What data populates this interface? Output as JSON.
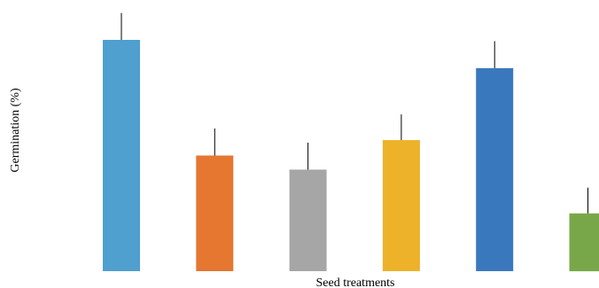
{
  "chart_data": {
    "type": "bar",
    "title": "",
    "xlabel": "Seed treatments",
    "ylabel": "Germination (%)",
    "ylim": [
      0,
      100
    ],
    "grid": false,
    "axis_ticks_shown": false,
    "legend": "none",
    "categories": [
      "",
      "",
      "",
      "",
      "",
      ""
    ],
    "values": [
      90,
      45,
      39.5,
      51,
      79,
      22.5
    ],
    "error_upper": [
      10.5,
      10.5,
      10.5,
      10,
      10.5,
      10
    ],
    "colors": [
      "#4F9FCF",
      "#E57731",
      "#A6A6A6",
      "#EDB22A",
      "#3A78BE",
      "#78A74A"
    ]
  }
}
